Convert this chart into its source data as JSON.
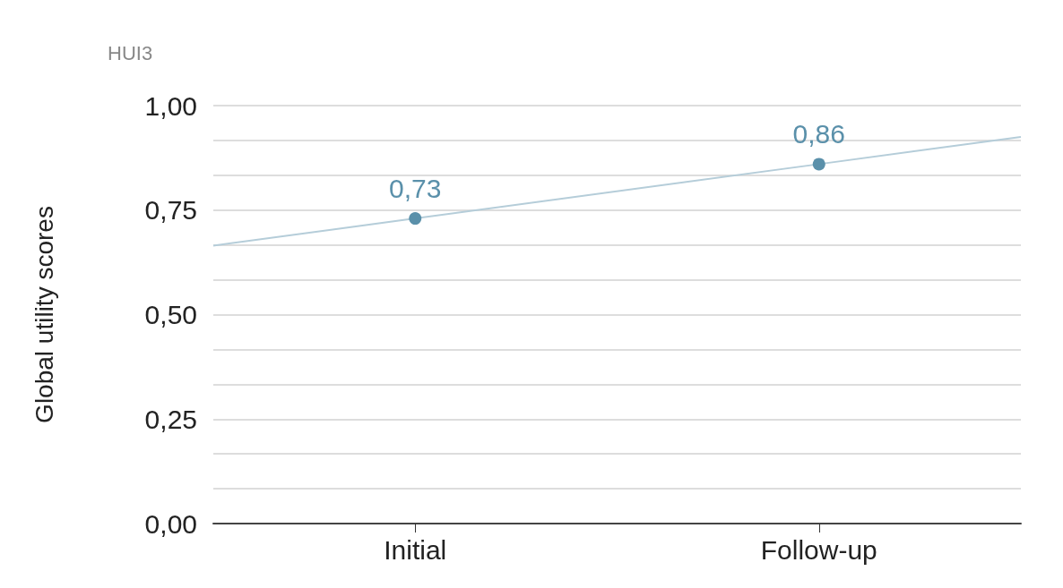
{
  "chart_data": {
    "type": "line",
    "ylabel": "Global utility scores",
    "annotations": [
      "HUI3"
    ],
    "categories": [
      "Initial",
      "Follow-up"
    ],
    "ylim": [
      0,
      1
    ],
    "yticks": [
      {
        "value": 0,
        "label": "0,00"
      },
      {
        "value": 0.0833,
        "label": null
      },
      {
        "value": 0.1667,
        "label": null
      },
      {
        "value": 0.25,
        "label": "0,25"
      },
      {
        "value": 0.3333,
        "label": null
      },
      {
        "value": 0.4167,
        "label": null
      },
      {
        "value": 0.5,
        "label": "0,50"
      },
      {
        "value": 0.5833,
        "label": null
      },
      {
        "value": 0.6667,
        "label": null
      },
      {
        "value": 0.75,
        "label": "0,75"
      },
      {
        "value": 0.8333,
        "label": null
      },
      {
        "value": 0.9167,
        "label": null
      },
      {
        "value": 1,
        "label": "1,00"
      }
    ],
    "grid": "y",
    "marker": "circle",
    "data_labels": true,
    "line_style": "solid",
    "series": [
      {
        "color": "#5a90aa",
        "values": [
          0.73,
          0.86
        ],
        "value_labels": [
          "0,73",
          "0,86"
        ]
      }
    ]
  }
}
